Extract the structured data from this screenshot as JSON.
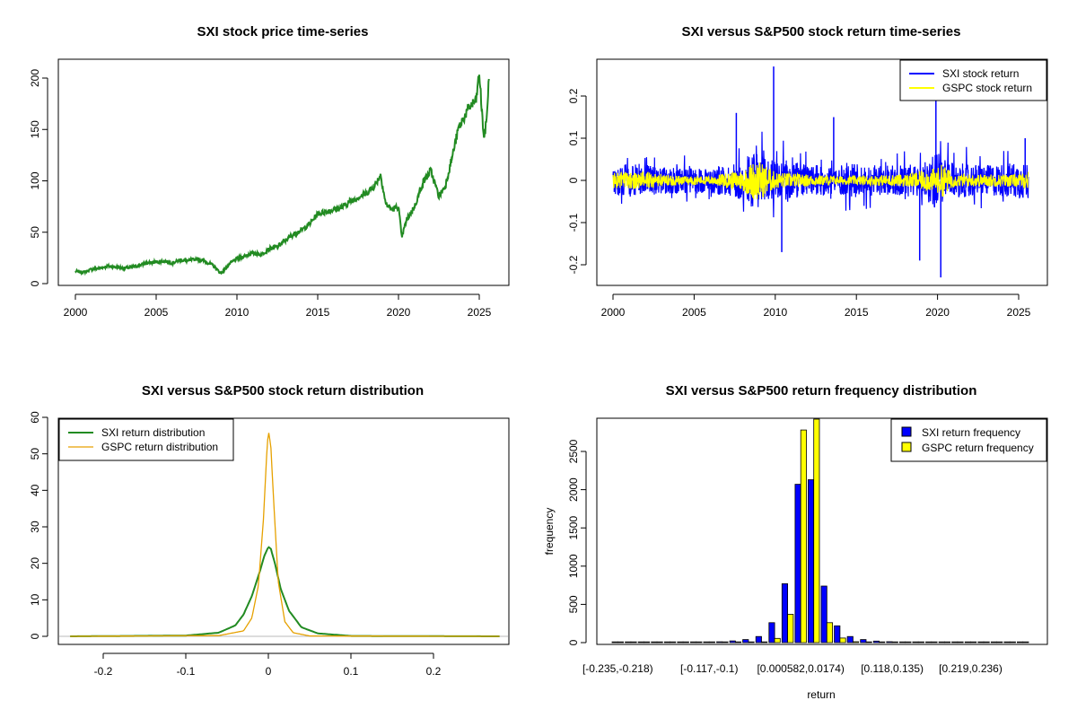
{
  "colors": {
    "sxi": "#0000ff",
    "gspc": "#ffff00",
    "price": "#228b22",
    "gspc_density": "#e6a100",
    "frame": "#000000"
  },
  "chart_data": [
    {
      "id": "price",
      "type": "line",
      "title": "SXI stock price time-series",
      "xlabel": "",
      "ylabel": "",
      "xlim": [
        2000,
        2025.6
      ],
      "ylim": [
        0,
        210
      ],
      "xticks": [
        2000,
        2005,
        2010,
        2015,
        2020,
        2025
      ],
      "yticks": [
        0,
        50,
        100,
        150,
        200
      ],
      "series": [
        {
          "name": "SXI price",
          "x": [
            2000.0,
            2000.5,
            2001.0,
            2001.5,
            2002.0,
            2002.5,
            2003.0,
            2003.5,
            2004.0,
            2004.5,
            2005.0,
            2005.5,
            2006.0,
            2006.5,
            2007.0,
            2007.5,
            2008.0,
            2008.5,
            2009.0,
            2009.3,
            2009.6,
            2010.0,
            2010.5,
            2011.0,
            2011.5,
            2012.0,
            2012.5,
            2013.0,
            2013.5,
            2014.0,
            2014.5,
            2015.0,
            2015.5,
            2016.0,
            2016.5,
            2017.0,
            2017.5,
            2018.0,
            2018.5,
            2018.9,
            2019.2,
            2019.6,
            2020.0,
            2020.2,
            2020.5,
            2021.0,
            2021.5,
            2022.0,
            2022.5,
            2022.9,
            2023.3,
            2023.7,
            2024.0,
            2024.4,
            2024.8,
            2025.0,
            2025.15,
            2025.3,
            2025.45,
            2025.6
          ],
          "y": [
            12,
            11,
            14,
            15,
            17,
            16,
            15,
            16,
            18,
            20,
            21,
            22,
            20,
            23,
            22,
            24,
            22,
            18,
            10,
            15,
            20,
            24,
            27,
            30,
            28,
            34,
            36,
            42,
            48,
            52,
            58,
            68,
            70,
            72,
            74,
            80,
            84,
            88,
            95,
            106,
            78,
            72,
            75,
            45,
            62,
            75,
            98,
            110,
            85,
            95,
            122,
            150,
            160,
            172,
            178,
            205,
            170,
            140,
            160,
            200
          ]
        }
      ]
    },
    {
      "id": "returns_ts",
      "type": "line",
      "title": "SXI versus S&P500 stock return time-series",
      "xlabel": "",
      "ylabel": "",
      "xlim": [
        2000,
        2025.6
      ],
      "ylim": [
        -0.25,
        0.28
      ],
      "xticks": [
        2000,
        2005,
        2010,
        2015,
        2020,
        2025
      ],
      "yticks": [
        -0.2,
        -0.1,
        0.0,
        0.1,
        0.2
      ],
      "legend": {
        "position": "top-right",
        "entries": [
          "SXI stock return",
          "GSPC stock return"
        ]
      },
      "series": [
        {
          "name": "SXI stock return",
          "x": [
            2000,
            2001,
            2002,
            2003,
            2004,
            2005,
            2006,
            2007,
            2008,
            2008.5,
            2009,
            2009.3,
            2009.6,
            2010,
            2011,
            2012,
            2013,
            2014,
            2015,
            2016,
            2017,
            2018,
            2018.9,
            2019,
            2020,
            2020.2,
            2020.5,
            2021,
            2022,
            2023,
            2024,
            2025,
            2025.6
          ],
          "y": [
            0.03,
            0.04,
            0.035,
            0.03,
            0.03,
            0.025,
            0.03,
            0.035,
            0.05,
            0.08,
            0.1,
            0.08,
            0.06,
            0.05,
            0.05,
            0.035,
            0.035,
            0.035,
            0.04,
            0.035,
            0.035,
            0.04,
            0.04,
            0.035,
            0.08,
            0.07,
            0.05,
            0.04,
            0.04,
            0.035,
            0.04,
            0.045,
            0.05
          ],
          "amp": [
            0.04,
            0.05,
            0.045,
            0.04,
            0.04,
            0.035,
            0.04,
            0.045,
            0.06,
            0.09,
            0.11,
            0.09,
            0.07,
            0.06,
            0.06,
            0.045,
            0.045,
            0.045,
            0.05,
            0.045,
            0.045,
            0.05,
            0.05,
            0.045,
            0.09,
            0.08,
            0.06,
            0.05,
            0.05,
            0.045,
            0.05,
            0.055,
            0.06
          ],
          "spikes": [
            {
              "x": 2009.9,
              "y": 0.27
            },
            {
              "x": 2010.4,
              "y": -0.17
            },
            {
              "x": 2018.9,
              "y": -0.19
            },
            {
              "x": 2020.2,
              "y": -0.23
            },
            {
              "x": 2019.9,
              "y": 0.19
            },
            {
              "x": 2007.6,
              "y": 0.16
            },
            {
              "x": 2013.6,
              "y": 0.15
            },
            {
              "x": 2025.4,
              "y": 0.1
            }
          ]
        },
        {
          "name": "GSPC stock return",
          "x": [
            2000,
            2002,
            2004,
            2006,
            2008,
            2008.8,
            2009.3,
            2010,
            2012,
            2014,
            2016,
            2018,
            2020,
            2020.3,
            2021,
            2023,
            2025,
            2025.6
          ],
          "amp": [
            0.02,
            0.02,
            0.012,
            0.01,
            0.025,
            0.05,
            0.04,
            0.02,
            0.014,
            0.01,
            0.012,
            0.015,
            0.03,
            0.04,
            0.015,
            0.015,
            0.015,
            0.02
          ]
        }
      ]
    },
    {
      "id": "density",
      "type": "line",
      "title": "SXI versus S&P500 stock return distribution",
      "xlabel": "",
      "ylabel": "",
      "xlim": [
        -0.25,
        0.29
      ],
      "ylim": [
        -1,
        60
      ],
      "xticks": [
        -0.2,
        -0.1,
        0.0,
        0.1,
        0.2
      ],
      "yticks": [
        0,
        10,
        20,
        30,
        40,
        50,
        60
      ],
      "legend": {
        "position": "top-left",
        "entries": [
          "SXI return distribution",
          "GSPC return distribution"
        ]
      },
      "series": [
        {
          "name": "SXI return distribution",
          "x": [
            -0.24,
            -0.1,
            -0.06,
            -0.04,
            -0.03,
            -0.02,
            -0.01,
            -0.005,
            0.0,
            0.003,
            0.008,
            0.015,
            0.025,
            0.04,
            0.06,
            0.1,
            0.28
          ],
          "y": [
            0,
            0.2,
            1,
            3,
            6,
            11,
            18,
            22,
            24.5,
            24,
            20,
            13,
            7,
            2.5,
            0.8,
            0.1,
            0
          ]
        },
        {
          "name": "GSPC return distribution",
          "x": [
            -0.24,
            -0.06,
            -0.03,
            -0.02,
            -0.012,
            -0.006,
            -0.002,
            0.0,
            0.003,
            0.007,
            0.012,
            0.02,
            0.03,
            0.05,
            0.28
          ],
          "y": [
            0,
            0.2,
            1.5,
            5,
            14,
            32,
            50,
            56.5,
            52,
            35,
            15,
            4,
            1,
            0.1,
            0
          ]
        }
      ]
    },
    {
      "id": "histogram",
      "type": "bar",
      "title": "SXI versus S&P500 return frequency distribution",
      "xlabel": "return",
      "ylabel": "frequency",
      "ylim": [
        0,
        2950
      ],
      "yticks": [
        0,
        500,
        1000,
        1500,
        2000,
        2500
      ],
      "xtick_labels": [
        "[-0.235,-0.218)",
        "[-0.117,-0.1)",
        "[0.000582,0.0174)",
        "[0.118,0.135)",
        "[0.219,0.236)"
      ],
      "xtick_bins": [
        0,
        7,
        14,
        21,
        27
      ],
      "legend": {
        "position": "top-right",
        "entries": [
          "SXI return frequency",
          "GSPC return frequency"
        ]
      },
      "series": [
        {
          "name": "SXI return frequency",
          "values": [
            1,
            1,
            1,
            1,
            1,
            1,
            2,
            5,
            10,
            22,
            40,
            80,
            260,
            770,
            2070,
            2130,
            740,
            220,
            80,
            40,
            20,
            12,
            8,
            5,
            3,
            2,
            1,
            1,
            1,
            1,
            1,
            1
          ]
        },
        {
          "name": "GSPC return frequency",
          "values": [
            0,
            0,
            0,
            0,
            0,
            0,
            0,
            0,
            0,
            0,
            2,
            5,
            55,
            370,
            2780,
            2950,
            260,
            60,
            12,
            4,
            2,
            1,
            0,
            0,
            0,
            0,
            0,
            0,
            0,
            0,
            0,
            0
          ]
        }
      ]
    }
  ]
}
